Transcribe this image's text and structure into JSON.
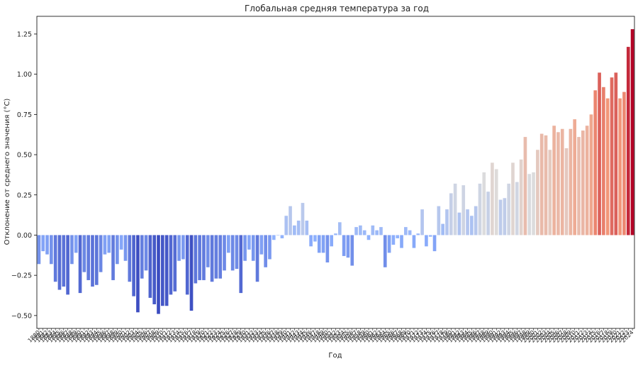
{
  "chart_data": {
    "type": "bar",
    "title": "Глобальная средняя температура за год",
    "xlabel": "Год",
    "ylabel": "Отклонение от среднего значения (°C)",
    "ylim": [
      -0.58,
      1.36
    ],
    "yticks": [
      -0.5,
      -0.25,
      0.0,
      0.25,
      0.5,
      0.75,
      1.0,
      1.25
    ],
    "ytick_labels": [
      "−0.50",
      "−0.25",
      "0.00",
      "0.25",
      "0.50",
      "0.75",
      "1.00",
      "1.25"
    ],
    "grid": false,
    "colormap": "coolwarm",
    "colors": {
      "cold": "#3b4cc0",
      "mid": "#dddddd",
      "warm": "#b40426"
    },
    "categories": [
      1880,
      1881,
      1882,
      1883,
      1884,
      1885,
      1886,
      1887,
      1888,
      1889,
      1890,
      1891,
      1892,
      1893,
      1894,
      1895,
      1896,
      1897,
      1898,
      1899,
      1900,
      1901,
      1902,
      1903,
      1904,
      1905,
      1906,
      1907,
      1908,
      1909,
      1910,
      1911,
      1912,
      1913,
      1914,
      1915,
      1916,
      1917,
      1918,
      1919,
      1920,
      1921,
      1922,
      1923,
      1924,
      1925,
      1926,
      1927,
      1928,
      1929,
      1930,
      1931,
      1932,
      1933,
      1934,
      1935,
      1936,
      1937,
      1938,
      1939,
      1940,
      1941,
      1942,
      1943,
      1944,
      1945,
      1946,
      1947,
      1948,
      1949,
      1950,
      1951,
      1952,
      1953,
      1954,
      1955,
      1956,
      1957,
      1958,
      1959,
      1960,
      1961,
      1962,
      1963,
      1964,
      1965,
      1966,
      1967,
      1968,
      1969,
      1970,
      1971,
      1972,
      1973,
      1974,
      1975,
      1976,
      1977,
      1978,
      1979,
      1980,
      1981,
      1982,
      1983,
      1984,
      1985,
      1986,
      1987,
      1988,
      1989,
      1990,
      1991,
      1992,
      1993,
      1994,
      1995,
      1996,
      1997,
      1998,
      1999,
      2000,
      2001,
      2002,
      2003,
      2004,
      2005,
      2006,
      2007,
      2008,
      2009,
      2010,
      2011,
      2012,
      2013,
      2014,
      2015,
      2016,
      2017,
      2018,
      2019,
      2020,
      2021,
      2022,
      2023,
      2024
    ],
    "values": [
      -0.18,
      -0.1,
      -0.12,
      -0.18,
      -0.29,
      -0.34,
      -0.32,
      -0.37,
      -0.18,
      -0.11,
      -0.36,
      -0.23,
      -0.28,
      -0.32,
      -0.31,
      -0.23,
      -0.12,
      -0.11,
      -0.28,
      -0.18,
      -0.09,
      -0.16,
      -0.29,
      -0.38,
      -0.48,
      -0.27,
      -0.22,
      -0.39,
      -0.43,
      -0.49,
      -0.44,
      -0.44,
      -0.37,
      -0.35,
      -0.16,
      -0.15,
      -0.37,
      -0.47,
      -0.3,
      -0.28,
      -0.28,
      -0.2,
      -0.29,
      -0.27,
      -0.27,
      -0.22,
      -0.11,
      -0.22,
      -0.21,
      -0.36,
      -0.16,
      -0.09,
      -0.16,
      -0.29,
      -0.12,
      -0.2,
      -0.15,
      -0.03,
      0.0,
      -0.02,
      0.12,
      0.18,
      0.06,
      0.09,
      0.2,
      0.09,
      -0.07,
      -0.04,
      -0.11,
      -0.11,
      -0.17,
      -0.07,
      0.01,
      0.08,
      -0.13,
      -0.14,
      -0.19,
      0.05,
      0.06,
      0.03,
      -0.03,
      0.06,
      0.03,
      0.05,
      -0.2,
      -0.11,
      -0.06,
      -0.02,
      -0.08,
      0.05,
      0.03,
      -0.08,
      0.01,
      0.16,
      -0.07,
      -0.01,
      -0.1,
      0.18,
      0.07,
      0.16,
      0.26,
      0.32,
      0.14,
      0.31,
      0.16,
      0.12,
      0.18,
      0.32,
      0.39,
      0.27,
      0.45,
      0.41,
      0.22,
      0.23,
      0.32,
      0.45,
      0.33,
      0.47,
      0.61,
      0.38,
      0.39,
      0.53,
      0.63,
      0.62,
      0.53,
      0.68,
      0.64,
      0.66,
      0.54,
      0.66,
      0.72,
      0.61,
      0.65,
      0.68,
      0.75,
      0.9,
      1.01,
      0.92,
      0.85,
      0.98,
      1.01,
      0.85,
      0.89,
      1.17,
      1.28
    ]
  }
}
